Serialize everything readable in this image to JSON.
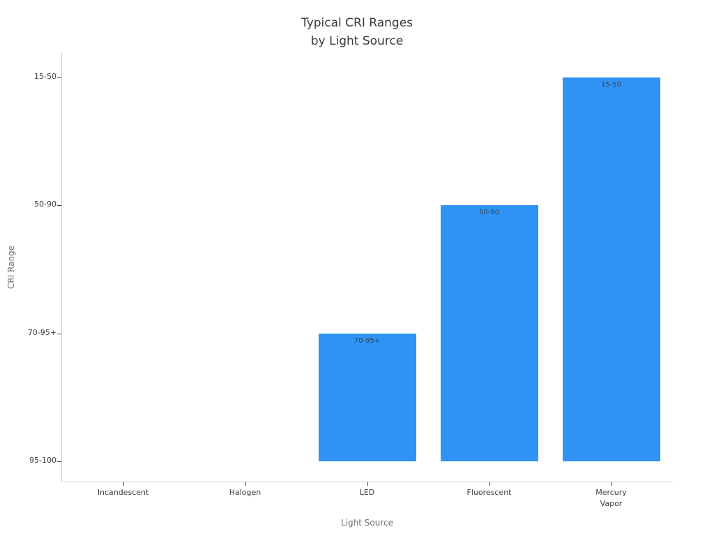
{
  "title": {
    "line1": "Typical CRI Ranges",
    "line2": "by Light Source"
  },
  "chart_data": {
    "type": "bar",
    "title": "Typical CRI Ranges by Light Source",
    "xlabel": "Light Source",
    "ylabel": "CRI Range",
    "categories": [
      "Incandescent",
      "Halogen",
      "LED",
      "Fluorescent",
      "Mercury Vapor"
    ],
    "x_tick_labels": [
      "Incandescent",
      "Halogen",
      "LED",
      "Fluorescent",
      "Mercury\nVapor"
    ],
    "y_tick_labels": [
      "95-100",
      "70-95+",
      "50-90",
      "15-50"
    ],
    "y_axis_note": "ordinal y axis: 0 = 95-100 (baseline), 1 = 70-95+, 2 = 50-90, 3 = 15-50",
    "values": [
      0,
      0,
      1,
      2,
      3
    ],
    "bar_labels": [
      "",
      "",
      "70-95+",
      "50-90",
      "15-50"
    ],
    "bar_color": "#2e93f5",
    "legend": "none",
    "grid": false
  }
}
